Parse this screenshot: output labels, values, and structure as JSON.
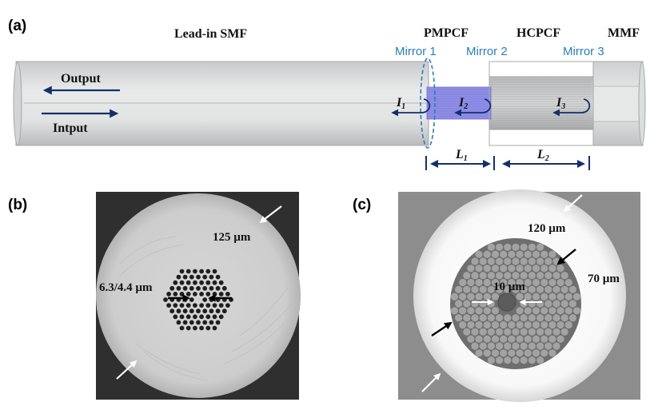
{
  "panels": {
    "a": {
      "label": "(a)",
      "fibers": {
        "smf": "Lead-in SMF",
        "pmpcf": "PMPCF",
        "hcpcf": "HCPCF",
        "mmf": "MMF"
      },
      "mirrors": {
        "m1": "Mirror 1",
        "m2": "Mirror 2",
        "m3": "Mirror 3"
      },
      "io": {
        "output": "Output",
        "input": "Intput"
      },
      "intensities": [
        {
          "main": "I",
          "sub": "1"
        },
        {
          "main": "I",
          "sub": "2"
        },
        {
          "main": "I",
          "sub": "3"
        }
      ],
      "lengths": [
        {
          "main": "L",
          "sub": "1"
        },
        {
          "main": "L",
          "sub": "2"
        }
      ]
    },
    "b": {
      "label": "(b)",
      "outer_diameter": "125 µm",
      "hole_pitch": "6.3/4.4 µm"
    },
    "c": {
      "label": "(c)",
      "outer_diameter": "120 µm",
      "cladding_diameter": "70 µm",
      "core_diameter": "10 µm"
    }
  },
  "colors": {
    "mirror": "#2a7fb8",
    "arrow": "#14306b",
    "pmpcf": "#8f8fe6"
  }
}
